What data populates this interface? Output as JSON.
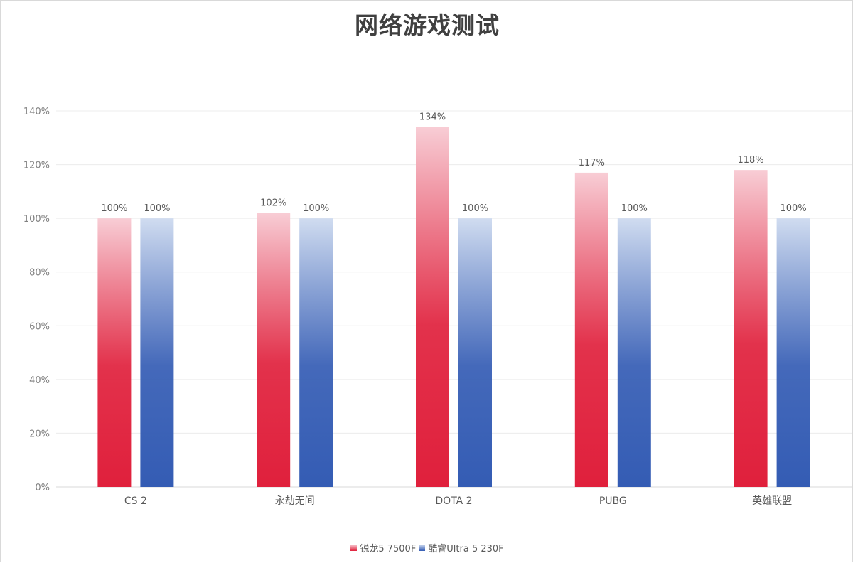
{
  "chart_data": {
    "type": "bar",
    "title": "网络游戏测试",
    "categories": [
      "CS 2",
      "永劫无间",
      "DOTA 2",
      "PUBG",
      "英雄联盟"
    ],
    "series": [
      {
        "name": "锐龙5 7500F",
        "values": [
          100,
          102,
          134,
          117,
          118
        ],
        "labels": [
          "100%",
          "102%",
          "134%",
          "117%",
          "118%"
        ],
        "color_top": "#f8cdd5",
        "color_bottom": "#e0203c"
      },
      {
        "name": "酷睿Ultra 5 230F",
        "values": [
          100,
          100,
          100,
          100,
          100
        ],
        "labels": [
          "100%",
          "100%",
          "100%",
          "100%",
          "100%"
        ],
        "color_top": "#d0dcf0",
        "color_bottom": "#345cb4"
      }
    ],
    "y_ticks": [
      "0%",
      "20%",
      "40%",
      "60%",
      "80%",
      "100%",
      "120%",
      "140%"
    ],
    "ylim": [
      0,
      140
    ],
    "xlabel": "",
    "ylabel": "",
    "grid": true,
    "legend_position": "bottom"
  }
}
